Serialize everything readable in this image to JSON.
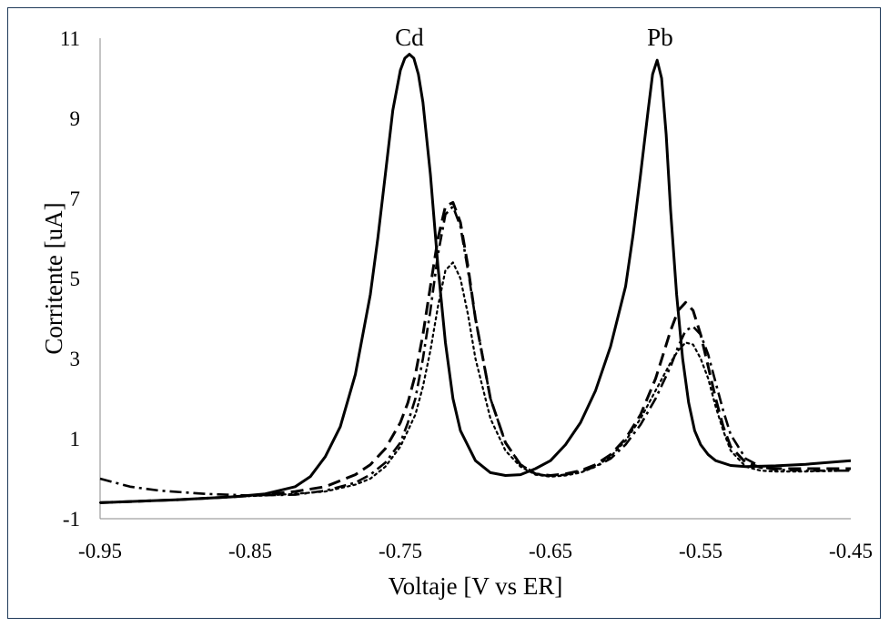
{
  "chart_data": {
    "type": "line",
    "title": "",
    "xlabel": "Voltaje [V vs ER]",
    "ylabel": "Corritente [uA]",
    "xlim": [
      -0.95,
      -0.45
    ],
    "ylim": [
      -1,
      11
    ],
    "xticks": [
      -0.95,
      -0.85,
      -0.75,
      -0.65,
      -0.55,
      -0.45
    ],
    "xtick_labels": [
      "-0.95",
      "-0.85",
      "-0.75",
      "-0.65",
      "-0.55",
      "-0.45"
    ],
    "yticks": [
      -1,
      1,
      3,
      5,
      7,
      9,
      11
    ],
    "ytick_labels": [
      "-1",
      "1",
      "3",
      "5",
      "7",
      "9",
      "11"
    ],
    "grid": false,
    "legend": "none",
    "annotations": [
      {
        "text": "Cd",
        "x": -0.744,
        "y": 11.0
      },
      {
        "text": "Pb",
        "x": -0.577,
        "y": 11.0
      }
    ],
    "series": [
      {
        "style": "solid",
        "color": "#000000",
        "x": [
          -0.95,
          -0.9,
          -0.86,
          -0.84,
          -0.82,
          -0.81,
          -0.8,
          -0.79,
          -0.78,
          -0.77,
          -0.765,
          -0.76,
          -0.755,
          -0.75,
          -0.747,
          -0.744,
          -0.741,
          -0.738,
          -0.735,
          -0.73,
          -0.725,
          -0.72,
          -0.715,
          -0.71,
          -0.7,
          -0.69,
          -0.68,
          -0.67,
          -0.66,
          -0.65,
          -0.64,
          -0.63,
          -0.62,
          -0.61,
          -0.6,
          -0.595,
          -0.59,
          -0.585,
          -0.582,
          -0.579,
          -0.576,
          -0.573,
          -0.57,
          -0.566,
          -0.562,
          -0.558,
          -0.554,
          -0.55,
          -0.545,
          -0.54,
          -0.53,
          -0.52,
          -0.5,
          -0.48,
          -0.45
        ],
        "y": [
          -0.6,
          -0.53,
          -0.45,
          -0.38,
          -0.2,
          0.05,
          0.55,
          1.3,
          2.6,
          4.6,
          6.0,
          7.6,
          9.2,
          10.2,
          10.5,
          10.6,
          10.5,
          10.1,
          9.4,
          7.6,
          5.3,
          3.4,
          2.0,
          1.2,
          0.45,
          0.15,
          0.08,
          0.1,
          0.25,
          0.45,
          0.85,
          1.4,
          2.2,
          3.3,
          4.8,
          6.1,
          7.6,
          9.2,
          10.1,
          10.45,
          10.0,
          8.6,
          6.7,
          4.6,
          3.0,
          1.9,
          1.2,
          0.85,
          0.6,
          0.45,
          0.33,
          0.3,
          0.32,
          0.36,
          0.45
        ]
      },
      {
        "style": "dashed",
        "color": "#000000",
        "x": [
          -0.95,
          -0.9,
          -0.86,
          -0.84,
          -0.82,
          -0.8,
          -0.79,
          -0.78,
          -0.77,
          -0.76,
          -0.75,
          -0.745,
          -0.74,
          -0.735,
          -0.73,
          -0.725,
          -0.72,
          -0.715,
          -0.71,
          -0.705,
          -0.7,
          -0.69,
          -0.68,
          -0.67,
          -0.66,
          -0.65,
          -0.64,
          -0.63,
          -0.62,
          -0.61,
          -0.6,
          -0.59,
          -0.58,
          -0.575,
          -0.57,
          -0.565,
          -0.56,
          -0.555,
          -0.55,
          -0.545,
          -0.54,
          -0.535,
          -0.53,
          -0.52,
          -0.51,
          -0.5,
          -0.48,
          -0.45
        ],
        "y": [
          -0.6,
          -0.53,
          -0.45,
          -0.4,
          -0.32,
          -0.2,
          -0.05,
          0.1,
          0.35,
          0.75,
          1.4,
          1.9,
          2.6,
          3.6,
          4.8,
          6.0,
          6.8,
          6.9,
          6.4,
          5.3,
          4.0,
          2.0,
          0.9,
          0.35,
          0.12,
          0.08,
          0.12,
          0.2,
          0.35,
          0.6,
          1.0,
          1.6,
          2.5,
          3.1,
          3.7,
          4.2,
          4.4,
          4.2,
          3.6,
          2.8,
          2.0,
          1.3,
          0.8,
          0.4,
          0.28,
          0.25,
          0.25,
          0.25
        ]
      },
      {
        "style": "dotted",
        "color": "#000000",
        "x": [
          -0.95,
          -0.9,
          -0.86,
          -0.84,
          -0.82,
          -0.8,
          -0.78,
          -0.77,
          -0.76,
          -0.75,
          -0.74,
          -0.735,
          -0.73,
          -0.725,
          -0.72,
          -0.715,
          -0.71,
          -0.705,
          -0.7,
          -0.69,
          -0.68,
          -0.67,
          -0.66,
          -0.65,
          -0.64,
          -0.63,
          -0.62,
          -0.61,
          -0.6,
          -0.59,
          -0.58,
          -0.57,
          -0.565,
          -0.56,
          -0.555,
          -0.55,
          -0.545,
          -0.54,
          -0.535,
          -0.53,
          -0.52,
          -0.51,
          -0.5,
          -0.48,
          -0.45
        ],
        "y": [
          -0.6,
          -0.53,
          -0.45,
          -0.42,
          -0.38,
          -0.32,
          -0.15,
          0.0,
          0.3,
          0.8,
          1.6,
          2.3,
          3.2,
          4.3,
          5.2,
          5.4,
          5.0,
          4.1,
          3.0,
          1.5,
          0.7,
          0.3,
          0.1,
          0.05,
          0.08,
          0.15,
          0.3,
          0.55,
          0.95,
          1.5,
          2.2,
          2.9,
          3.2,
          3.4,
          3.35,
          3.0,
          2.5,
          1.8,
          1.2,
          0.7,
          0.3,
          0.2,
          0.18,
          0.18,
          0.2
        ]
      },
      {
        "style": "dash-dot",
        "color": "#000000",
        "x": [
          -0.95,
          -0.93,
          -0.91,
          -0.88,
          -0.85,
          -0.82,
          -0.8,
          -0.78,
          -0.77,
          -0.76,
          -0.75,
          -0.745,
          -0.74,
          -0.735,
          -0.73,
          -0.725,
          -0.72,
          -0.715,
          -0.71,
          -0.705,
          -0.7,
          -0.69,
          -0.68,
          -0.67,
          -0.66,
          -0.65,
          -0.64,
          -0.63,
          -0.62,
          -0.61,
          -0.6,
          -0.59,
          -0.58,
          -0.57,
          -0.565,
          -0.56,
          -0.555,
          -0.55,
          -0.545,
          -0.54,
          -0.535,
          -0.53,
          -0.52,
          -0.51,
          -0.5,
          -0.48,
          -0.45
        ],
        "y": [
          0.0,
          -0.2,
          -0.3,
          -0.38,
          -0.42,
          -0.4,
          -0.3,
          -0.1,
          0.1,
          0.4,
          0.9,
          1.4,
          2.0,
          3.0,
          4.2,
          5.6,
          6.6,
          6.8,
          6.3,
          5.2,
          4.0,
          2.0,
          0.9,
          0.35,
          0.12,
          0.06,
          0.1,
          0.18,
          0.3,
          0.5,
          0.85,
          1.35,
          2.0,
          2.8,
          3.3,
          3.7,
          3.8,
          3.6,
          3.1,
          2.4,
          1.7,
          1.1,
          0.5,
          0.3,
          0.22,
          0.2,
          0.2
        ]
      }
    ]
  }
}
